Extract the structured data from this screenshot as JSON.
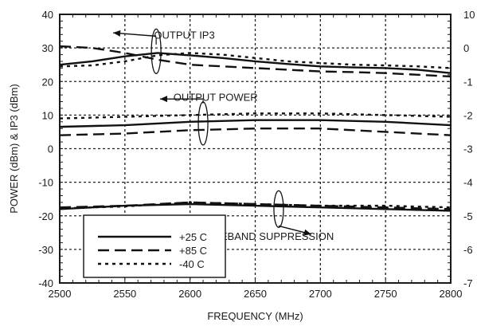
{
  "chart_data": {
    "type": "line",
    "xlabel": "FREQUENCY (MHz)",
    "ylabel": "POWER (dBm) & IP3 (dBm)",
    "xlim": [
      2500,
      2800
    ],
    "ylim": [
      -40,
      40
    ],
    "ylim_right": [
      -70,
      10
    ],
    "x_ticks": [
      "2500",
      "2550",
      "2600",
      "2650",
      "2700",
      "2750",
      "2800"
    ],
    "y_ticks": [
      "40",
      "30",
      "20",
      "10",
      "0",
      "-10",
      "-20",
      "-30",
      "-40"
    ],
    "y_right_ticks": [
      "10",
      "0",
      "-1",
      "-2",
      "-3",
      "-4",
      "-5",
      "-6",
      "-7"
    ],
    "grid": true,
    "legend_position": "bottom-left",
    "legend": [
      {
        "label": "+25 C",
        "style": "solid"
      },
      {
        "label": "+85 C",
        "style": "dashed"
      },
      {
        "label": "-40 C",
        "style": "dotted"
      }
    ],
    "annotations": [
      {
        "text": "OUTPUT IP3",
        "x": 2565,
        "y": 33
      },
      {
        "text": "OUTPUT POWER",
        "x": 2575,
        "y": 14.5
      },
      {
        "text": "SIDEBAND SUPPRESSION",
        "x": 2670,
        "y": -26
      }
    ],
    "series": [
      {
        "group": "OUTPUT IP3",
        "temp": "+25 C",
        "style": "solid",
        "x": [
          2500,
          2525,
          2550,
          2575,
          2600,
          2625,
          2650,
          2675,
          2700,
          2725,
          2750,
          2775,
          2800
        ],
        "y": [
          25,
          26,
          27.5,
          28.5,
          27.8,
          27,
          26,
          25.2,
          24.5,
          24.2,
          24,
          23.5,
          22.5
        ]
      },
      {
        "group": "OUTPUT IP3",
        "temp": "+85 C",
        "style": "dashed",
        "x": [
          2500,
          2525,
          2550,
          2575,
          2600,
          2625,
          2650,
          2675,
          2700,
          2725,
          2750,
          2775,
          2800
        ],
        "y": [
          30.5,
          30,
          28.5,
          26.5,
          25,
          24.5,
          24,
          23.5,
          23,
          22.8,
          22.5,
          22,
          21.5
        ]
      },
      {
        "group": "OUTPUT IP3",
        "temp": "-40 C",
        "style": "dotted",
        "x": [
          2500,
          2525,
          2550,
          2575,
          2600,
          2625,
          2650,
          2675,
          2700,
          2725,
          2750,
          2775,
          2800
        ],
        "y": [
          24.5,
          24.8,
          26,
          27.8,
          28.5,
          28,
          27,
          26,
          25.5,
          25,
          24.8,
          24.5,
          24
        ]
      },
      {
        "group": "OUTPUT POWER",
        "temp": "+25 C",
        "style": "solid",
        "x": [
          2500,
          2550,
          2600,
          2650,
          2700,
          2750,
          2800
        ],
        "y": [
          6.5,
          7,
          8,
          8.5,
          8.5,
          8,
          7
        ]
      },
      {
        "group": "OUTPUT POWER",
        "temp": "+85 C",
        "style": "dashed",
        "x": [
          2500,
          2550,
          2600,
          2650,
          2700,
          2750,
          2800
        ],
        "y": [
          4,
          4.5,
          5.5,
          6,
          6,
          5,
          4
        ]
      },
      {
        "group": "OUTPUT POWER",
        "temp": "-40 C",
        "style": "dotted",
        "x": [
          2500,
          2550,
          2600,
          2650,
          2700,
          2750,
          2800
        ],
        "y": [
          9,
          9.5,
          10,
          10.5,
          10.5,
          10,
          9.5
        ]
      },
      {
        "group": "SIDEBAND SUPPRESSION",
        "temp": "+25 C",
        "style": "solid",
        "x": [
          2500,
          2550,
          2600,
          2650,
          2700,
          2750,
          2800
        ],
        "y": [
          -18,
          -17,
          -16.5,
          -17,
          -17.5,
          -18,
          -18.5
        ]
      },
      {
        "group": "SIDEBAND SUPPRESSION",
        "temp": "+85 C",
        "style": "dashed",
        "x": [
          2500,
          2550,
          2600,
          2650,
          2700,
          2750,
          2800
        ],
        "y": [
          -17.5,
          -17,
          -16,
          -16.5,
          -17,
          -17.5,
          -18
        ]
      },
      {
        "group": "SIDEBAND SUPPRESSION",
        "temp": "-40 C",
        "style": "dotted",
        "x": [
          2500,
          2550,
          2600,
          2650,
          2700,
          2750,
          2800
        ],
        "y": [
          -17.8,
          -17.2,
          -16,
          -16.5,
          -17,
          -17,
          -17.5
        ]
      }
    ]
  }
}
